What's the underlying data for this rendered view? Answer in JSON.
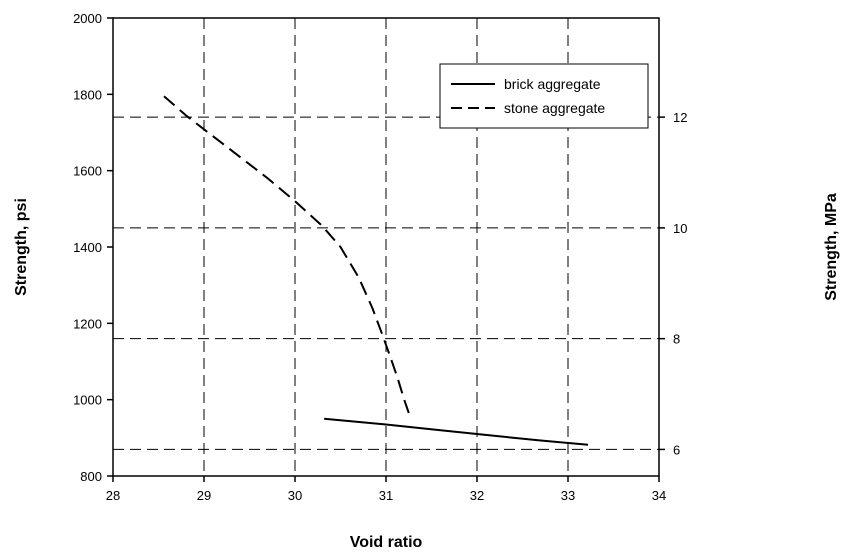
{
  "chart_data": {
    "type": "line",
    "xlabel": "Void ratio",
    "ylabel": "Strength, psi",
    "y2label": "Strength, MPa",
    "xlim": [
      28,
      34
    ],
    "ylim": [
      800,
      2000
    ],
    "y2lim": [
      5.52,
      13.79
    ],
    "x_ticks": [
      "28",
      "29",
      "30",
      "31",
      "32",
      "33",
      "34"
    ],
    "y_ticks": [
      "800",
      "1000",
      "1200",
      "1400",
      "1600",
      "1800",
      "2000"
    ],
    "y2_ticks": [
      "6",
      "8",
      "10",
      "12"
    ],
    "grid": true,
    "grid_style": "dashed",
    "legend_position": "top-right",
    "series": [
      {
        "name": "brick aggregate",
        "line_style": "solid",
        "color": "#000000",
        "x": [
          30.32,
          31.0,
          31.6,
          32.2,
          32.7,
          33.22
        ],
        "y": [
          950,
          935,
          920,
          905,
          893,
          882
        ]
      },
      {
        "name": "stone aggregate",
        "line_style": "dashed",
        "color": "#000000",
        "x": [
          28.56,
          28.8,
          29.1,
          29.4,
          29.7,
          30.0,
          30.3,
          30.5,
          30.7,
          30.85,
          30.96,
          31.05,
          31.13,
          31.2,
          31.25
        ],
        "y": [
          1795,
          1745,
          1690,
          1635,
          1580,
          1520,
          1455,
          1400,
          1320,
          1240,
          1170,
          1110,
          1055,
          1000,
          965
        ]
      }
    ]
  }
}
